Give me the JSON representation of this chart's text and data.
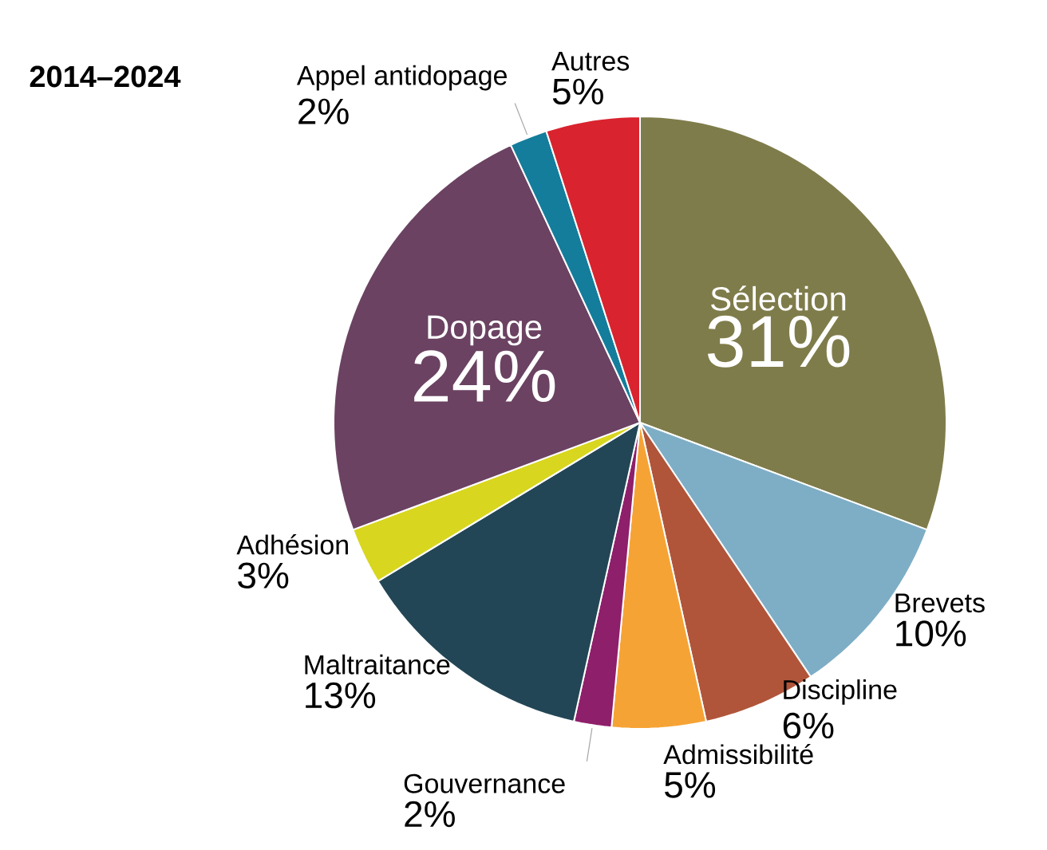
{
  "chart_data": {
    "type": "pie",
    "title": "2014–2024",
    "categories": [
      "Sélection",
      "Brevets",
      "Discipline",
      "Admissibilité",
      "Gouvernance",
      "Maltraitance",
      "Adhésion",
      "Dopage",
      "Appel antidopage",
      "Autres"
    ],
    "values": [
      31,
      10,
      6,
      5,
      2,
      13,
      3,
      24,
      2,
      5
    ],
    "value_labels": [
      "31%",
      "10%",
      "6%",
      "5%",
      "2%",
      "13%",
      "3%",
      "24%",
      "2%",
      "5%"
    ],
    "colors": [
      "#7f7c4b",
      "#7eaec6",
      "#b0553a",
      "#f6a335",
      "#8e1f6a",
      "#234656",
      "#d8d61f",
      "#6b4262",
      "#147d9b",
      "#d9232e"
    ]
  }
}
